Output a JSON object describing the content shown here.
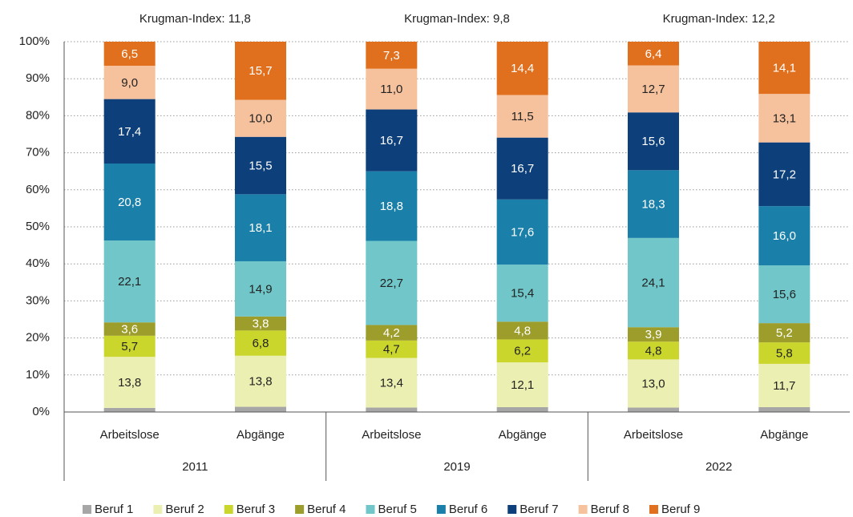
{
  "chart_data": {
    "type": "stacked_bar_100",
    "groups": [
      {
        "name": "2011",
        "annotation": "Krugman-Index: 11,8"
      },
      {
        "name": "2019",
        "annotation": "Krugman-Index: 9,8"
      },
      {
        "name": "2022",
        "annotation": "Krugman-Index: 12,2"
      }
    ],
    "categories": [
      "Arbeitslose",
      "Abgänge",
      "Arbeitslose",
      "Abgänge",
      "Arbeitslose",
      "Abgänge"
    ],
    "series": [
      {
        "name": "Beruf 1",
        "color": "#a6a6a6",
        "values": [
          1.1,
          1.4,
          1.2,
          1.3,
          1.2,
          1.3
        ]
      },
      {
        "name": "Beruf 2",
        "color": "#ecefb2",
        "values": [
          13.8,
          13.8,
          13.4,
          12.1,
          13.0,
          11.7
        ],
        "value_labels": [
          "13,8",
          "13,8",
          "13,4",
          "12,1",
          "13,0",
          "11,7"
        ]
      },
      {
        "name": "Beruf 3",
        "color": "#cbd62c",
        "values": [
          5.7,
          6.8,
          4.7,
          6.2,
          4.8,
          5.8
        ],
        "value_labels": [
          "5,7",
          "6,8",
          "4,7",
          "6,2",
          "4,8",
          "5,8"
        ]
      },
      {
        "name": "Beruf 4",
        "color": "#9c9d2b",
        "values": [
          3.6,
          3.8,
          4.2,
          4.8,
          3.9,
          5.2
        ],
        "value_labels": [
          "3,6",
          "3,8",
          "4,2",
          "4,8",
          "3,9",
          "5,2"
        ]
      },
      {
        "name": "Beruf 5",
        "color": "#70c6c8",
        "values": [
          22.1,
          14.9,
          22.7,
          15.4,
          24.1,
          15.6
        ],
        "value_labels": [
          "22,1",
          "14,9",
          "22,7",
          "15,4",
          "24,1",
          "15,6"
        ]
      },
      {
        "name": "Beruf 6",
        "color": "#1a80a9",
        "values": [
          20.8,
          18.1,
          18.8,
          17.6,
          18.3,
          16.0
        ],
        "value_labels": [
          "20,8",
          "18,1",
          "18,8",
          "17,6",
          "18,3",
          "16,0"
        ]
      },
      {
        "name": "Beruf 7",
        "color": "#0d3f7a",
        "values": [
          17.4,
          15.5,
          16.7,
          16.7,
          15.6,
          17.2
        ],
        "value_labels": [
          "17,4",
          "15,5",
          "16,7",
          "16,7",
          "15,6",
          "17,2"
        ]
      },
      {
        "name": "Beruf 8",
        "color": "#f6c29d",
        "values": [
          9.0,
          10.0,
          11.0,
          11.5,
          12.7,
          13.1
        ],
        "value_labels": [
          "9,0",
          "10,0",
          "11,0",
          "11,5",
          "12,7",
          "13,1"
        ]
      },
      {
        "name": "Beruf 9",
        "color": "#e0701e",
        "values": [
          6.5,
          15.7,
          7.3,
          14.4,
          6.4,
          14.1
        ],
        "value_labels": [
          "6,5",
          "15,7",
          "7,3",
          "14,4",
          "6,4",
          "14,1"
        ]
      }
    ],
    "ylim": [
      0,
      100
    ],
    "yticks": [
      {
        "value": 0,
        "label": "0%"
      },
      {
        "value": 10,
        "label": "10%"
      },
      {
        "value": 20,
        "label": "20%"
      },
      {
        "value": 30,
        "label": "30%"
      },
      {
        "value": 40,
        "label": "40%"
      },
      {
        "value": 50,
        "label": "50%"
      },
      {
        "value": 60,
        "label": "60%"
      },
      {
        "value": 70,
        "label": "70%"
      },
      {
        "value": 80,
        "label": "80%"
      },
      {
        "value": 90,
        "label": "90%"
      },
      {
        "value": 100,
        "label": "100%"
      }
    ],
    "grid": true,
    "legend": "bottom"
  }
}
